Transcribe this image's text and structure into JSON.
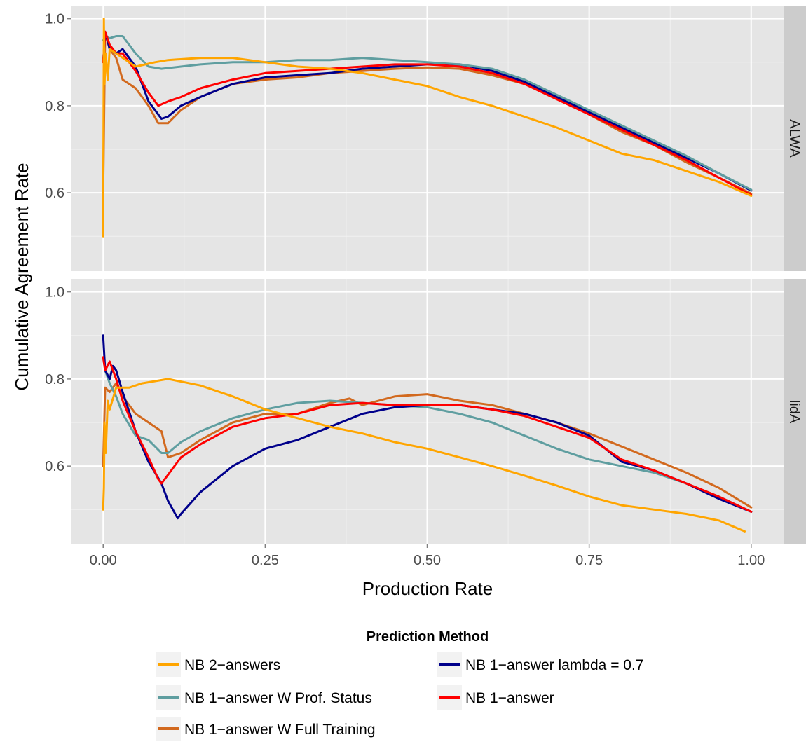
{
  "chart_data": {
    "type": "line",
    "xlabel": "Production Rate",
    "ylabel": "Cumulative Agreement Rate",
    "xlim": [
      -0.05,
      1.05
    ],
    "x_ticks": [
      "0.00",
      "0.25",
      "0.50",
      "0.75",
      "1.00"
    ],
    "y_ticks": [
      "0.6",
      "0.8",
      "1.0"
    ],
    "grid": true,
    "legend": {
      "title": "Prediction Method",
      "position": "bottom",
      "entries": [
        {
          "name": "NB 2−answers",
          "color": "#FFA500"
        },
        {
          "name": "NB 1−answer lambda = 0.7",
          "color": "#00008B"
        },
        {
          "name": "NB 1−answer W Prof. Status",
          "color": "#5F9EA0"
        },
        {
          "name": "NB 1−answer",
          "color": "#FF0000"
        },
        {
          "name": "NB 1−answer W Full Training",
          "color": "#D2691E"
        }
      ]
    },
    "panels": [
      {
        "label": "ALWA",
        "ylim": [
          0.42,
          1.03
        ],
        "series": [
          {
            "name": "NB 1−answer W Full Training",
            "color": "#D2691E",
            "x": [
              0,
              0.003,
              0.01,
              0.02,
              0.03,
              0.05,
              0.07,
              0.085,
              0.1,
              0.12,
              0.15,
              0.2,
              0.25,
              0.3,
              0.35,
              0.4,
              0.45,
              0.5,
              0.55,
              0.6,
              0.65,
              0.7,
              0.75,
              0.8,
              0.85,
              0.9,
              0.95,
              1.0
            ],
            "y": [
              0.6,
              0.97,
              0.93,
              0.91,
              0.86,
              0.84,
              0.8,
              0.76,
              0.76,
              0.79,
              0.82,
              0.85,
              0.86,
              0.865,
              0.875,
              0.88,
              0.885,
              0.888,
              0.885,
              0.87,
              0.85,
              0.82,
              0.78,
              0.74,
              0.71,
              0.67,
              0.635,
              0.598
            ]
          },
          {
            "name": "NB 1−answer lambda = 0.7",
            "color": "#00008B",
            "x": [
              0,
              0.003,
              0.01,
              0.02,
              0.03,
              0.05,
              0.07,
              0.09,
              0.1,
              0.12,
              0.15,
              0.2,
              0.25,
              0.3,
              0.35,
              0.4,
              0.45,
              0.5,
              0.55,
              0.6,
              0.65,
              0.7,
              0.75,
              0.8,
              0.85,
              0.9,
              0.95,
              1.0
            ],
            "y": [
              0.9,
              0.97,
              0.93,
              0.92,
              0.93,
              0.89,
              0.81,
              0.77,
              0.775,
              0.8,
              0.82,
              0.85,
              0.865,
              0.87,
              0.875,
              0.885,
              0.89,
              0.895,
              0.895,
              0.88,
              0.855,
              0.82,
              0.785,
              0.75,
              0.715,
              0.68,
              0.645,
              0.605
            ]
          },
          {
            "name": "NB 1−answer W Prof. Status",
            "color": "#5F9EA0",
            "x": [
              0,
              0.003,
              0.01,
              0.02,
              0.03,
              0.05,
              0.07,
              0.09,
              0.12,
              0.15,
              0.2,
              0.25,
              0.3,
              0.35,
              0.4,
              0.45,
              0.5,
              0.55,
              0.6,
              0.65,
              0.7,
              0.75,
              0.8,
              0.85,
              0.9,
              0.95,
              1.0
            ],
            "y": [
              0.95,
              0.96,
              0.955,
              0.96,
              0.96,
              0.92,
              0.89,
              0.885,
              0.89,
              0.895,
              0.9,
              0.9,
              0.905,
              0.905,
              0.91,
              0.905,
              0.9,
              0.895,
              0.885,
              0.86,
              0.825,
              0.79,
              0.755,
              0.72,
              0.685,
              0.645,
              0.607
            ]
          },
          {
            "name": "NB 1−answer",
            "color": "#FF0000",
            "x": [
              0,
              0.003,
              0.01,
              0.02,
              0.03,
              0.05,
              0.07,
              0.085,
              0.1,
              0.12,
              0.15,
              0.2,
              0.25,
              0.3,
              0.35,
              0.4,
              0.45,
              0.5,
              0.55,
              0.6,
              0.65,
              0.7,
              0.75,
              0.8,
              0.85,
              0.9,
              0.95,
              1.0
            ],
            "y": [
              0.9,
              0.97,
              0.94,
              0.92,
              0.92,
              0.88,
              0.83,
              0.8,
              0.81,
              0.82,
              0.84,
              0.86,
              0.875,
              0.88,
              0.885,
              0.89,
              0.895,
              0.895,
              0.89,
              0.875,
              0.85,
              0.815,
              0.78,
              0.745,
              0.71,
              0.675,
              0.635,
              0.595
            ]
          },
          {
            "name": "NB 2−answers",
            "color": "#FFA500",
            "x": [
              0,
              0.001,
              0.002,
              0.004,
              0.007,
              0.01,
              0.02,
              0.05,
              0.08,
              0.1,
              0.15,
              0.2,
              0.25,
              0.3,
              0.35,
              0.4,
              0.45,
              0.5,
              0.55,
              0.6,
              0.65,
              0.7,
              0.75,
              0.8,
              0.85,
              0.9,
              0.95,
              1.0
            ],
            "y": [
              0.5,
              1.0,
              0.85,
              0.92,
              0.86,
              0.93,
              0.92,
              0.89,
              0.9,
              0.905,
              0.91,
              0.91,
              0.9,
              0.89,
              0.885,
              0.875,
              0.86,
              0.845,
              0.82,
              0.8,
              0.775,
              0.75,
              0.72,
              0.69,
              0.675,
              0.65,
              0.625,
              0.593
            ]
          }
        ]
      },
      {
        "label": "lidA",
        "ylim": [
          0.42,
          1.03
        ],
        "series": [
          {
            "name": "NB 1−answer W Full Training",
            "color": "#D2691E",
            "x": [
              0,
              0.003,
              0.01,
              0.02,
              0.03,
              0.05,
              0.07,
              0.09,
              0.1,
              0.12,
              0.15,
              0.2,
              0.25,
              0.3,
              0.35,
              0.38,
              0.4,
              0.45,
              0.5,
              0.55,
              0.6,
              0.65,
              0.7,
              0.75,
              0.8,
              0.85,
              0.9,
              0.95,
              1.0
            ],
            "y": [
              0.6,
              0.78,
              0.77,
              0.79,
              0.76,
              0.72,
              0.7,
              0.68,
              0.62,
              0.63,
              0.66,
              0.7,
              0.72,
              0.72,
              0.745,
              0.755,
              0.74,
              0.76,
              0.765,
              0.75,
              0.74,
              0.72,
              0.7,
              0.675,
              0.645,
              0.615,
              0.585,
              0.55,
              0.505
            ]
          },
          {
            "name": "NB 1−answer W Prof. Status",
            "color": "#5F9EA0",
            "x": [
              0,
              0.003,
              0.01,
              0.02,
              0.03,
              0.05,
              0.07,
              0.09,
              0.1,
              0.12,
              0.15,
              0.2,
              0.25,
              0.3,
              0.35,
              0.4,
              0.45,
              0.5,
              0.55,
              0.6,
              0.65,
              0.7,
              0.75,
              0.8,
              0.85,
              0.9,
              0.95,
              1.0
            ],
            "y": [
              0.85,
              0.82,
              0.79,
              0.76,
              0.72,
              0.67,
              0.66,
              0.63,
              0.63,
              0.655,
              0.68,
              0.71,
              0.73,
              0.745,
              0.75,
              0.745,
              0.74,
              0.735,
              0.72,
              0.7,
              0.67,
              0.64,
              0.615,
              0.6,
              0.585,
              0.56,
              0.53,
              0.495
            ]
          },
          {
            "name": "NB 1−answer lambda = 0.7",
            "color": "#00008B",
            "x": [
              0,
              0.003,
              0.01,
              0.015,
              0.02,
              0.03,
              0.05,
              0.07,
              0.09,
              0.1,
              0.115,
              0.12,
              0.15,
              0.2,
              0.25,
              0.3,
              0.35,
              0.4,
              0.45,
              0.5,
              0.55,
              0.6,
              0.65,
              0.7,
              0.75,
              0.8,
              0.85,
              0.9,
              0.95,
              1.0
            ],
            "y": [
              0.9,
              0.82,
              0.8,
              0.83,
              0.82,
              0.77,
              0.68,
              0.61,
              0.56,
              0.52,
              0.48,
              0.49,
              0.54,
              0.6,
              0.64,
              0.66,
              0.69,
              0.72,
              0.735,
              0.74,
              0.74,
              0.73,
              0.72,
              0.7,
              0.67,
              0.61,
              0.59,
              0.56,
              0.525,
              0.495
            ]
          },
          {
            "name": "NB 1−answer",
            "color": "#FF0000",
            "x": [
              0,
              0.003,
              0.01,
              0.02,
              0.03,
              0.05,
              0.07,
              0.085,
              0.09,
              0.1,
              0.12,
              0.15,
              0.2,
              0.25,
              0.3,
              0.35,
              0.4,
              0.45,
              0.5,
              0.55,
              0.6,
              0.65,
              0.7,
              0.75,
              0.8,
              0.85,
              0.9,
              0.95,
              1.0
            ],
            "y": [
              0.85,
              0.82,
              0.84,
              0.8,
              0.75,
              0.68,
              0.62,
              0.57,
              0.56,
              0.58,
              0.62,
              0.65,
              0.69,
              0.71,
              0.72,
              0.74,
              0.745,
              0.74,
              0.74,
              0.74,
              0.73,
              0.715,
              0.69,
              0.665,
              0.615,
              0.59,
              0.56,
              0.53,
              0.495
            ]
          },
          {
            "name": "NB 2−answers",
            "color": "#FFA500",
            "x": [
              0,
              0.001,
              0.002,
              0.004,
              0.007,
              0.01,
              0.02,
              0.04,
              0.06,
              0.08,
              0.1,
              0.15,
              0.2,
              0.25,
              0.3,
              0.35,
              0.4,
              0.45,
              0.5,
              0.55,
              0.6,
              0.65,
              0.7,
              0.75,
              0.8,
              0.85,
              0.9,
              0.95,
              0.99
            ],
            "y": [
              0.5,
              0.55,
              0.7,
              0.63,
              0.75,
              0.73,
              0.78,
              0.78,
              0.79,
              0.795,
              0.8,
              0.785,
              0.76,
              0.73,
              0.71,
              0.69,
              0.675,
              0.655,
              0.64,
              0.62,
              0.6,
              0.578,
              0.555,
              0.53,
              0.51,
              0.5,
              0.49,
              0.475,
              0.45
            ]
          }
        ]
      }
    ]
  }
}
